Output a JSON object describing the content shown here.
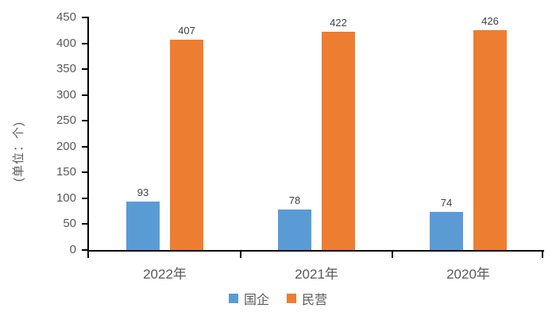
{
  "chart_data": {
    "type": "bar",
    "categories": [
      "2022年",
      "2021年",
      "2020年"
    ],
    "series": [
      {
        "name": "国企",
        "color": "#5B9BD5",
        "values": [
          93,
          78,
          74
        ]
      },
      {
        "name": "民营",
        "color": "#ED7D31",
        "values": [
          407,
          422,
          426
        ]
      }
    ],
    "title": "",
    "xlabel": "",
    "ylabel": "(单位：个)",
    "ylim": [
      0,
      450
    ],
    "ytick_step": 50,
    "grid": false,
    "legend_position": "bottom",
    "value_labels": true,
    "colors": {
      "axis": "#000000",
      "tick_label": "#595959",
      "value_label": "#404040"
    }
  }
}
